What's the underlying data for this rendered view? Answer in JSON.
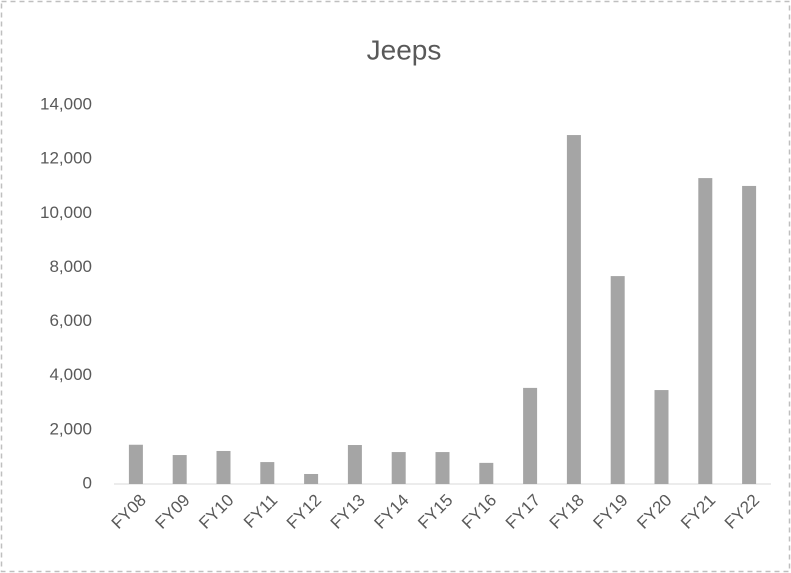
{
  "chart_data": {
    "type": "bar",
    "title": "Jeeps",
    "categories": [
      "FY08",
      "FY09",
      "FY10",
      "FY11",
      "FY12",
      "FY13",
      "FY14",
      "FY15",
      "FY16",
      "FY17",
      "FY18",
      "FY19",
      "FY20",
      "FY21",
      "FY22"
    ],
    "values": [
      1450,
      1070,
      1220,
      810,
      370,
      1440,
      1180,
      1180,
      780,
      3550,
      12890,
      7680,
      3470,
      11300,
      11010
    ],
    "color": "#a5a5a5",
    "ylim": [
      0,
      14000
    ],
    "yticks": [
      0,
      {
        "value": 2000,
        "label": "2,000"
      },
      {
        "value": 4000,
        "label": "4,000"
      },
      {
        "value": 6000,
        "label": "6,000"
      },
      {
        "value": 8000,
        "label": "8,000"
      },
      {
        "value": 10000,
        "label": "10,000"
      },
      {
        "value": 12000,
        "label": "12,000"
      },
      {
        "value": 14000,
        "label": "14,000"
      }
    ],
    "grid": false
  }
}
